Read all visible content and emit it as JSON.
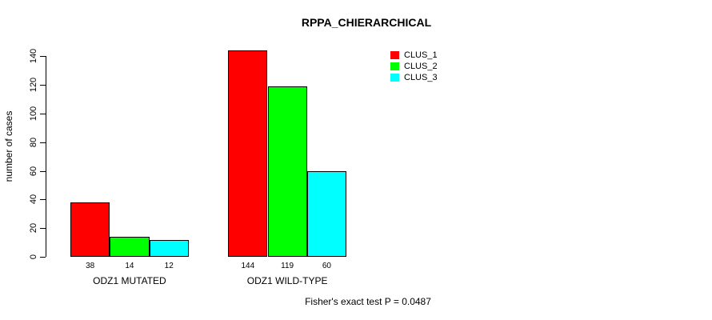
{
  "title": "RPPA_CHIERARCHICAL",
  "footnote": "Fisher's exact test P = 0.0487",
  "chart_data": {
    "type": "bar",
    "title": "RPPA_CHIERARCHICAL",
    "xlabel": "",
    "ylabel": "number of cases",
    "categories": [
      "ODZ1 MUTATED",
      "ODZ1 WILD-TYPE"
    ],
    "series": [
      {
        "name": "CLUS_1",
        "color": "#ff0000",
        "values": [
          38,
          144
        ]
      },
      {
        "name": "CLUS_2",
        "color": "#00ff00",
        "values": [
          14,
          119
        ]
      },
      {
        "name": "CLUS_3",
        "color": "#00ffff",
        "values": [
          12,
          60
        ]
      }
    ],
    "yticks": [
      0,
      20,
      40,
      60,
      80,
      100,
      120,
      140
    ],
    "ylim": [
      0,
      144
    ],
    "bar_value_labels_shown": true,
    "grid": false,
    "legend_position": "top-right",
    "annotation": "Fisher's exact test P = 0.0487"
  }
}
